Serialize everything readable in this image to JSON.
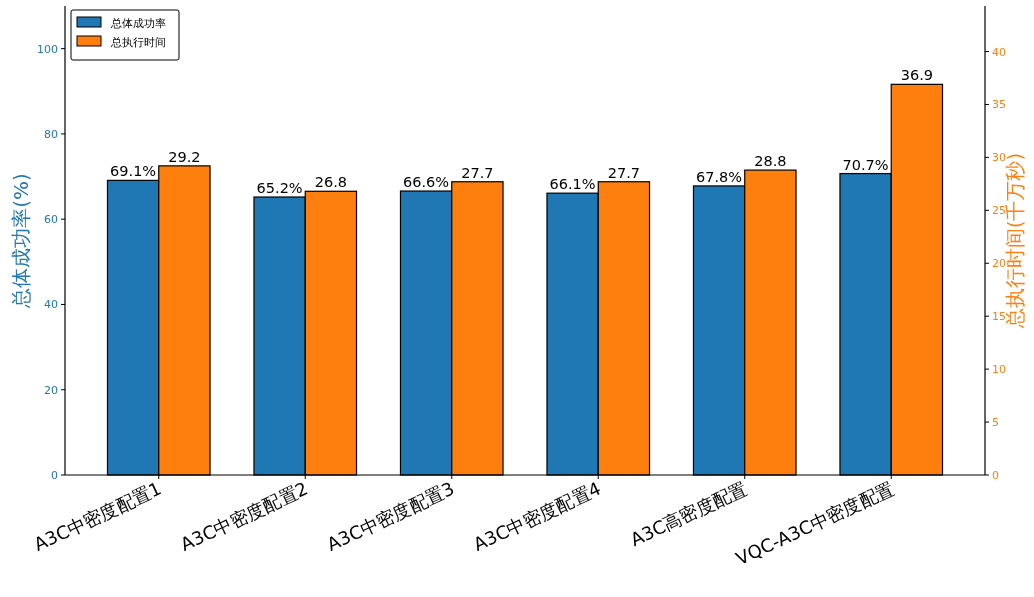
{
  "chart_data": {
    "type": "bar",
    "categories": [
      "A3C中密度配置1",
      "A3C中密度配置2",
      "A3C中密度配置3",
      "A3C中密度配置4",
      "A3C高密度配置",
      "VQC-A3C中密度配置"
    ],
    "series": [
      {
        "name": "总体成功率",
        "color": "#1f77b4",
        "values": [
          69.1,
          65.2,
          66.6,
          66.1,
          67.8,
          70.7
        ],
        "value_labels": [
          "69.1%",
          "65.2%",
          "66.6%",
          "66.1%",
          "67.8%",
          "70.7%"
        ]
      },
      {
        "name": "总执行时间",
        "color": "#ff7f0e",
        "axis": "y2",
        "values": [
          29.2,
          26.8,
          27.7,
          27.7,
          28.8,
          36.9
        ],
        "value_labels": [
          "29.2",
          "26.8",
          "27.7",
          "27.7",
          "28.8",
          "36.9"
        ]
      }
    ],
    "ylabel": "总体成功率(%)",
    "y2label": "总执行时间(千万秒)",
    "ylim": [
      0,
      110
    ],
    "yticks": [
      0,
      20,
      40,
      60,
      80,
      100
    ],
    "y2lim": [
      0,
      44.3
    ],
    "y2ticks": [
      0,
      5,
      10,
      15,
      20,
      25,
      30,
      35,
      40
    ],
    "grid": false,
    "legend": "top left"
  }
}
